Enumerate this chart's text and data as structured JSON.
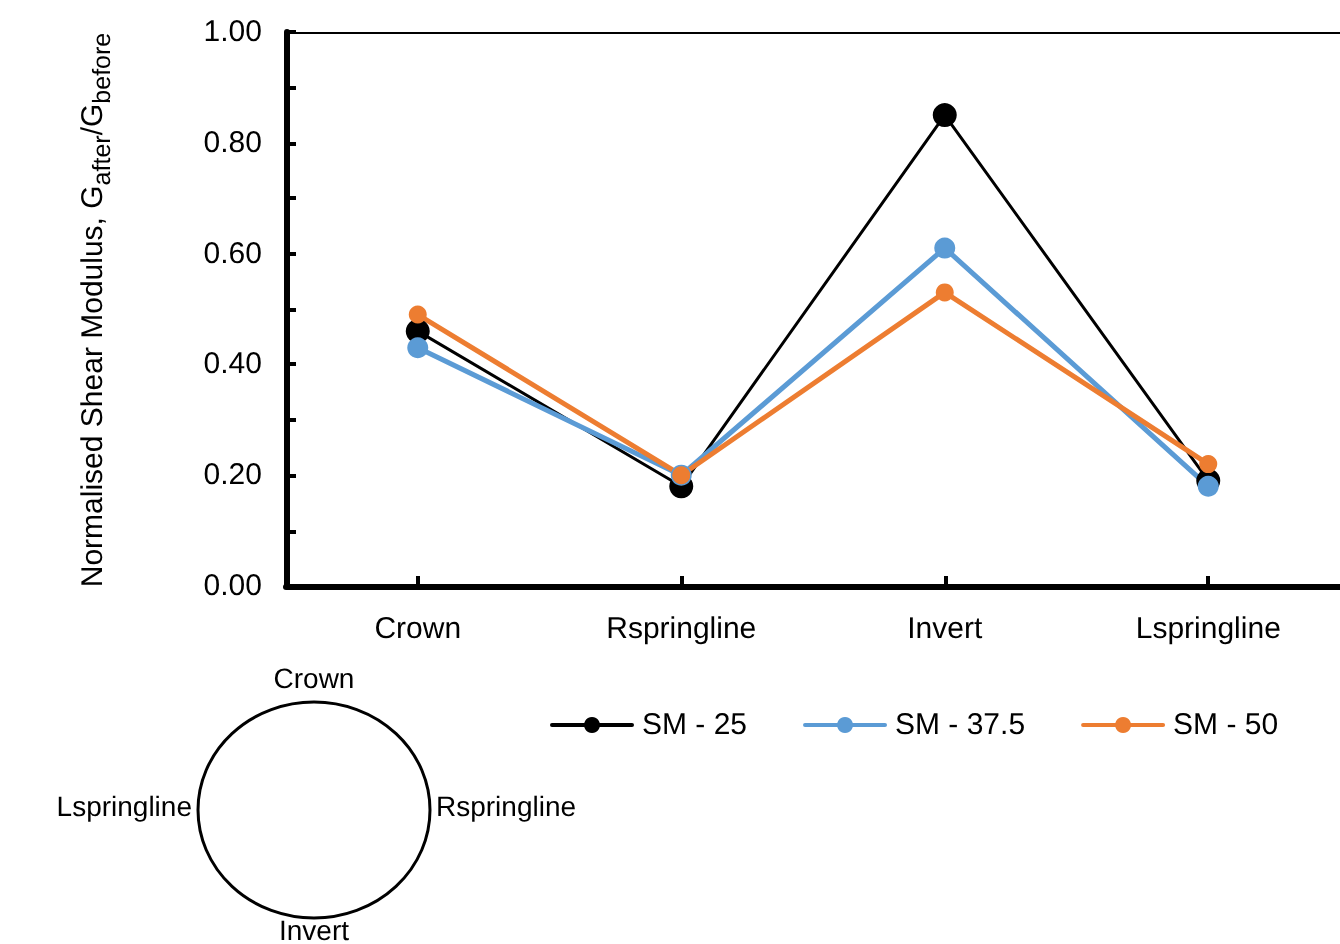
{
  "chart_data": {
    "type": "line",
    "ylabel": "Normalised Shear Modulus, G$_{after}$/G$_{before}$",
    "categories": [
      "Crown",
      "Rspringline",
      "Invert",
      "Lspringline"
    ],
    "series": [
      {
        "name": "SM - 25",
        "color": "#000000",
        "values": [
          0.46,
          0.18,
          0.85,
          0.19
        ]
      },
      {
        "name": "SM - 37.5",
        "color": "#5b9bd5",
        "values": [
          0.43,
          0.2,
          0.61,
          0.18
        ]
      },
      {
        "name": "SM - 50",
        "color": "#ed7d31",
        "values": [
          0.49,
          0.2,
          0.53,
          0.22
        ]
      }
    ],
    "ylim": [
      0,
      1
    ],
    "yticks": [
      {
        "value": 0,
        "label": "0.00"
      },
      {
        "value": 0.1,
        "label": null
      },
      {
        "value": 0.2,
        "label": "0.20"
      },
      {
        "value": 0.3,
        "label": null
      },
      {
        "value": 0.4,
        "label": "0.40"
      },
      {
        "value": 0.5,
        "label": null
      },
      {
        "value": 0.6,
        "label": "0.60"
      },
      {
        "value": 0.7,
        "label": null
      },
      {
        "value": 0.8,
        "label": "0.80"
      },
      {
        "value": 0.9,
        "label": null
      },
      {
        "value": 1,
        "label": "1.00"
      }
    ],
    "annotations": [
      "Crown",
      "Rspringline",
      "Invert",
      "Lspringline"
    ],
    "grid": false,
    "legend": "bottom",
    "marker": "circle",
    "line_style": "solid"
  }
}
